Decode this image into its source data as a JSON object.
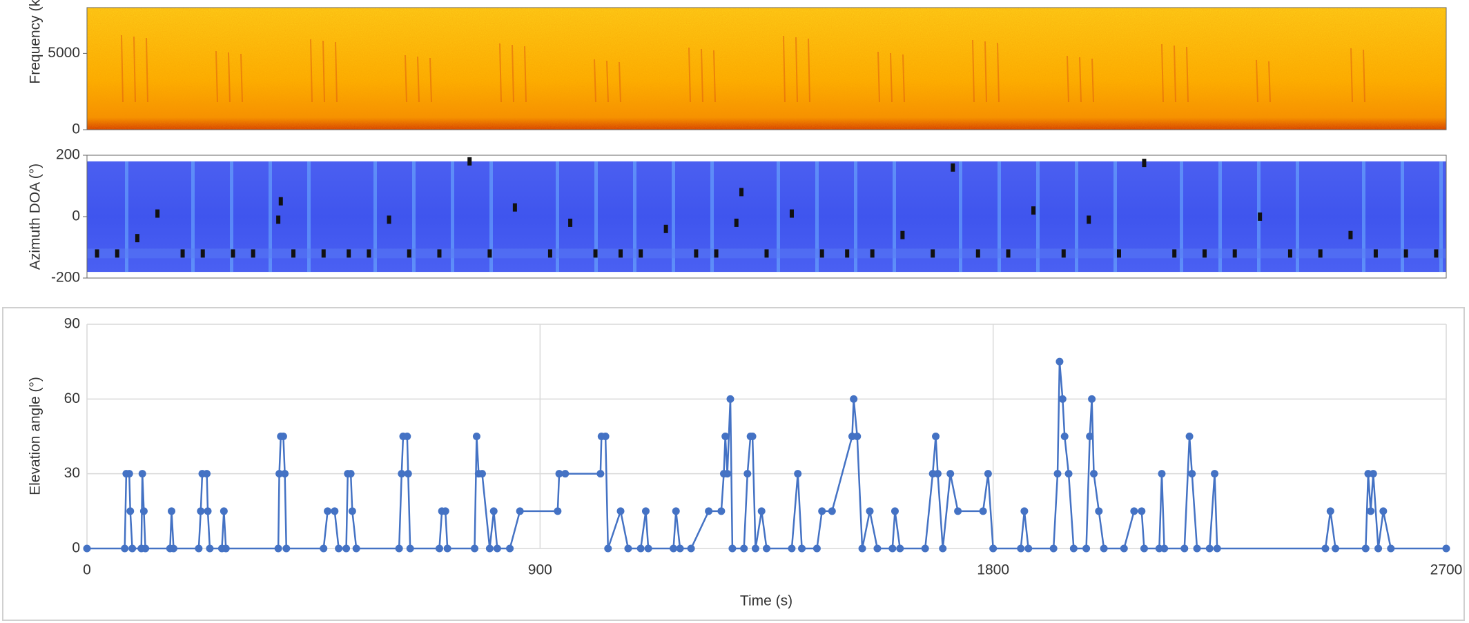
{
  "chart_data": [
    {
      "type": "heatmap",
      "ylabel": "Frequency (kHz)",
      "ylim": [
        0,
        8000
      ],
      "yticks": [
        0,
        5000
      ]
    },
    {
      "type": "scatter",
      "ylabel": "Azimuth DOA (°)",
      "xlim": [
        0,
        2700
      ],
      "ylim": [
        -200,
        200
      ],
      "yticks": [
        -200,
        0,
        200
      ],
      "color": "#111111",
      "x": [
        20,
        60,
        100,
        140,
        190,
        230,
        290,
        330,
        380,
        385,
        410,
        470,
        520,
        560,
        600,
        640,
        700,
        760,
        800,
        850,
        920,
        960,
        1010,
        1060,
        1100,
        1150,
        1210,
        1250,
        1290,
        1300,
        1350,
        1400,
        1460,
        1510,
        1560,
        1620,
        1680,
        1720,
        1770,
        1830,
        1880,
        1940,
        1990,
        2050,
        2100,
        2160,
        2220,
        2280,
        2330,
        2390,
        2450,
        2510,
        2560,
        2620,
        2680
      ],
      "values": [
        -120,
        -120,
        -70,
        10,
        -120,
        -120,
        -120,
        -120,
        -10,
        50,
        -120,
        -120,
        -120,
        -120,
        -10,
        -120,
        -120,
        180,
        -120,
        30,
        -120,
        -20,
        -120,
        -120,
        -120,
        -40,
        -120,
        -120,
        -20,
        80,
        -120,
        10,
        -120,
        -120,
        -120,
        -60,
        -120,
        160,
        -120,
        -120,
        20,
        -120,
        -10,
        -120,
        175,
        -120,
        -120,
        -120,
        0,
        -120,
        -120,
        -60,
        -120,
        -120,
        -120
      ]
    },
    {
      "type": "line",
      "xlabel": "Time (s)",
      "ylabel": "Elevation angle (°)",
      "color": "#4472c4",
      "grid": true,
      "xlim": [
        0,
        2700
      ],
      "xticks": [
        0,
        900,
        1800,
        2700
      ],
      "ylim": [
        0,
        90
      ],
      "yticks": [
        0,
        30,
        60,
        90
      ],
      "x": [
        0,
        75,
        78,
        84,
        86,
        90,
        108,
        110,
        113,
        116,
        165,
        168,
        172,
        222,
        226,
        229,
        238,
        240,
        244,
        268,
        272,
        276,
        380,
        382,
        385,
        390,
        393,
        396,
        470,
        478,
        492,
        500,
        515,
        518,
        524,
        527,
        535,
        620,
        625,
        628,
        636,
        638,
        642,
        700,
        705,
        712,
        716,
        770,
        774,
        778,
        785,
        800,
        808,
        815,
        840,
        860,
        935,
        938,
        950,
        1020,
        1022,
        1030,
        1035,
        1060,
        1075,
        1100,
        1110,
        1115,
        1165,
        1170,
        1178,
        1200,
        1235,
        1260,
        1265,
        1268,
        1272,
        1278,
        1282,
        1305,
        1312,
        1318,
        1322,
        1328,
        1340,
        1350,
        1400,
        1412,
        1420,
        1450,
        1460,
        1480,
        1520,
        1523,
        1530,
        1540,
        1555,
        1570,
        1600,
        1605,
        1615,
        1665,
        1680,
        1686,
        1690,
        1700,
        1715,
        1730,
        1780,
        1790,
        1800,
        1855,
        1862,
        1870,
        1920,
        1928,
        1932,
        1938,
        1942,
        1950,
        1960,
        1985,
        1992,
        1996,
        2000,
        2010,
        2020,
        2060,
        2080,
        2095,
        2100,
        2130,
        2135,
        2140,
        2180,
        2190,
        2195,
        2205,
        2230,
        2240,
        2245,
        2460,
        2470,
        2480,
        2540,
        2545,
        2550,
        2555,
        2565,
        2575,
        2590,
        2700
      ],
      "values": [
        0,
        0,
        30,
        30,
        15,
        0,
        0,
        30,
        15,
        0,
        0,
        15,
        0,
        0,
        15,
        30,
        30,
        15,
        0,
        0,
        15,
        0,
        0,
        30,
        45,
        45,
        30,
        0,
        0,
        15,
        15,
        0,
        0,
        30,
        30,
        15,
        0,
        0,
        30,
        45,
        45,
        30,
        0,
        0,
        15,
        15,
        0,
        0,
        45,
        30,
        30,
        0,
        15,
        0,
        0,
        15,
        15,
        30,
        30,
        30,
        45,
        45,
        0,
        15,
        0,
        0,
        15,
        0,
        0,
        15,
        0,
        0,
        15,
        15,
        30,
        45,
        30,
        60,
        0,
        0,
        30,
        45,
        45,
        0,
        15,
        0,
        0,
        30,
        0,
        0,
        15,
        15,
        45,
        60,
        45,
        0,
        15,
        0,
        0,
        15,
        0,
        0,
        30,
        45,
        30,
        0,
        30,
        15,
        15,
        30,
        0,
        0,
        15,
        0,
        0,
        30,
        75,
        60,
        45,
        30,
        0,
        0,
        45,
        60,
        30,
        15,
        0,
        0,
        15,
        15,
        0,
        0,
        30,
        0,
        0,
        45,
        30,
        0,
        0,
        30,
        0,
        0,
        15,
        0,
        0,
        30,
        15,
        30,
        0,
        15,
        0,
        0
      ]
    }
  ]
}
